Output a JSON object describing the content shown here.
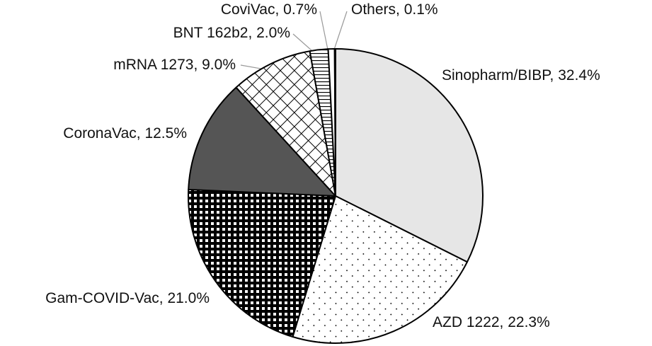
{
  "chart_data": {
    "type": "pie",
    "title": "",
    "slices": [
      {
        "label": "Sinopharm/BIBP",
        "value": 32.4,
        "text": "Sinopharm/BIBP, 32.4%",
        "pattern": "light-gray"
      },
      {
        "label": "AZD 1222",
        "value": 22.3,
        "text": "AZD 1222, 22.3%",
        "pattern": "dots"
      },
      {
        "label": "Gam-COVID-Vac",
        "value": 21.0,
        "text": "Gam-COVID-Vac, 21.0%",
        "pattern": "black-grid"
      },
      {
        "label": "CoronaVac",
        "value": 12.5,
        "text": "CoronaVac, 12.5%",
        "pattern": "dark-gray"
      },
      {
        "label": "mRNA 1273",
        "value": 9.0,
        "text": "mRNA 1273, 9.0%",
        "pattern": "crosshatch"
      },
      {
        "label": "BNT 162b2",
        "value": 2.0,
        "text": "BNT 162b2, 2.0%",
        "pattern": "horizontal-lines"
      },
      {
        "label": "CoviVac",
        "value": 0.7,
        "text": "CoviVac, 0.7%",
        "pattern": "white"
      },
      {
        "label": "Others",
        "value": 0.1,
        "text": "Others, 0.1%",
        "pattern": "dark-gray"
      }
    ],
    "start_angle": "12 o'clock",
    "direction": "clockwise",
    "colors": {
      "light": "#e6e6e6",
      "dark": "#555555",
      "line": "#000000",
      "leader": "#999999"
    }
  }
}
